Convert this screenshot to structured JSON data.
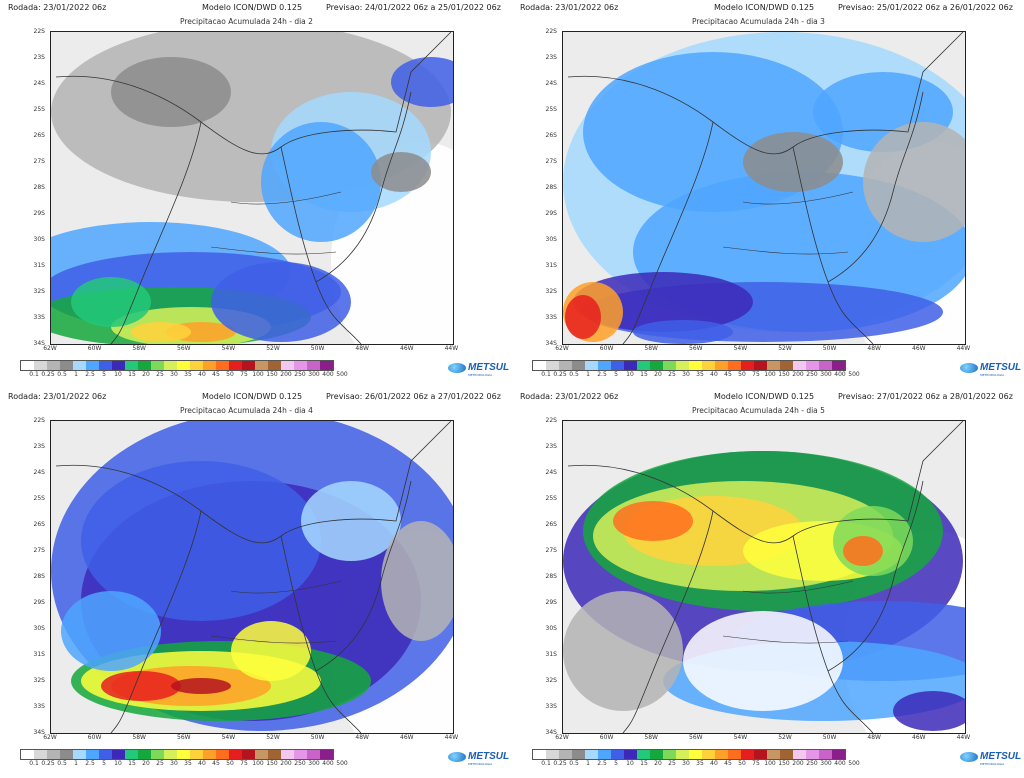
{
  "panels": [
    {
      "rodada": "Rodada: 23/01/2022 06z",
      "modelo": "Modelo ICON/DWD 0.125",
      "previsao": "Previsao: 24/01/2022 06z a 25/01/2022 06z",
      "titulo": "Precipitacao Acumulada 24h - dia 2"
    },
    {
      "rodada": "Rodada: 23/01/2022 06z",
      "modelo": "Modelo ICON/DWD 0.125",
      "previsao": "Previsao: 25/01/2022 06z a 26/01/2022 06z",
      "titulo": "Precipitacao Acumulada 24h - dia 3"
    },
    {
      "rodada": "Rodada: 23/01/2022 06z",
      "modelo": "Modelo ICON/DWD 0.125",
      "previsao": "Previsao: 26/01/2022 06z a 27/01/2022 06z",
      "titulo": "Precipitacao Acumulada 24h - dia 4"
    },
    {
      "rodada": "Rodada: 23/01/2022 06z",
      "modelo": "Modelo ICON/DWD 0.125",
      "previsao": "Previsao: 27/01/2022 06z a 28/01/2022 06z",
      "titulo": "Precipitacao Acumulada 24h - dia 5"
    }
  ],
  "lat_labels": [
    "22S",
    "23S",
    "24S",
    "25S",
    "26S",
    "27S",
    "28S",
    "29S",
    "30S",
    "31S",
    "32S",
    "33S",
    "34S"
  ],
  "lon_labels": [
    "62W",
    "60W",
    "58W",
    "56W",
    "54W",
    "52W",
    "50W",
    "48W",
    "46W",
    "44W"
  ],
  "colorbar": {
    "labels": [
      "0.1",
      "0.25",
      "0.5",
      "1",
      "2.5",
      "5",
      "10",
      "15",
      "20",
      "25",
      "30",
      "35",
      "40",
      "45",
      "50",
      "75",
      "100",
      "150",
      "200",
      "250",
      "300",
      "400",
      "500"
    ],
    "colors": [
      "#ffffff",
      "#d8d8d8",
      "#b4b4b4",
      "#8c8c8c",
      "#a6d9ff",
      "#4fa6ff",
      "#3f5fe6",
      "#3c29b8",
      "#23c87a",
      "#15a83c",
      "#7ed95a",
      "#d6f05a",
      "#ffff3c",
      "#ffd23c",
      "#ffa028",
      "#ff6e1e",
      "#e61e1e",
      "#b4141e",
      "#c89664",
      "#a06432",
      "#f0c8f0",
      "#e696e6",
      "#c864c8",
      "#8c1e8c"
    ]
  },
  "logo": {
    "name": "METSUL",
    "tagline": "METEOROLOGIA"
  }
}
